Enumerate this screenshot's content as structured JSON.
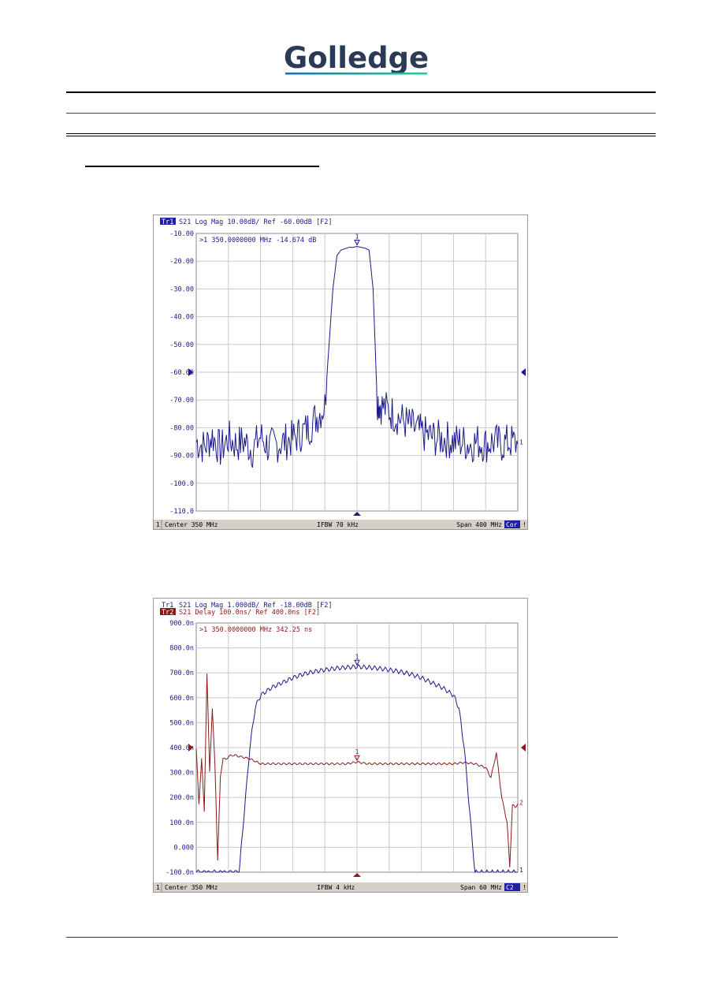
{
  "brand": {
    "name": "Golledge",
    "text_color": "#2a3a57",
    "accent_start": "#1a6fb0",
    "accent_end": "#2fc59a"
  },
  "colors": {
    "trace_blue": "#1a1a8c",
    "trace_red": "#8b1a1a",
    "grid": "#c8c8c8",
    "status_bar": "#d4d0c8",
    "badge_bg": "#2020a0"
  },
  "chart_data": [
    {
      "type": "line",
      "title": "",
      "header": [
        {
          "tag": "Tr1",
          "text": "S21 Log Mag 10.00dB/ Ref -60.00dB [F2]",
          "color": "#1a1a8c"
        }
      ],
      "marker_readout": ">1   350.0000000 MHz -14.674 dB",
      "yticks": [
        "-10.00",
        "-20.00",
        "-30.00",
        "-40.00",
        "-50.00",
        "-60.00",
        "-70.00",
        "-80.00",
        "-90.00",
        "-100.0",
        "-110.0"
      ],
      "ylim": [
        -110,
        -10
      ],
      "reference_level": -60,
      "x_divisions": 10,
      "xlim": [
        150,
        550
      ],
      "grid": true,
      "series": [
        {
          "color": "#1a1a8c",
          "x": [
            150,
            160,
            170,
            180,
            190,
            200,
            210,
            220,
            230,
            240,
            250,
            260,
            270,
            280,
            290,
            300,
            310,
            320,
            325,
            330,
            335,
            340,
            345,
            350,
            355,
            360,
            365,
            370,
            375,
            380,
            390,
            400,
            410,
            420,
            430,
            440,
            450,
            460,
            470,
            480,
            490,
            500,
            510,
            520,
            530,
            540,
            550
          ],
          "y": [
            -85,
            -87,
            -83,
            -88,
            -84,
            -86,
            -85,
            -88,
            -83,
            -87,
            -86,
            -85,
            -84,
            -82,
            -80,
            -76,
            -72,
            -30,
            -18,
            -16,
            -15.5,
            -15,
            -15,
            -14.7,
            -15,
            -15.3,
            -16,
            -30,
            -70,
            -72,
            -74,
            -76,
            -78,
            -80,
            -82,
            -83,
            -84,
            -84,
            -85,
            -85,
            -86,
            -85,
            -86,
            -85,
            -86,
            -85,
            -86
          ]
        }
      ],
      "markers": [
        {
          "x": 350,
          "y": -14.674,
          "label": "1"
        }
      ],
      "status": {
        "channel": "1",
        "center": "Center 350 MHz",
        "ifbw": "IFBW 70 kHz",
        "span": "Span 400 MHz",
        "badge": "Cor"
      }
    },
    {
      "type": "line",
      "title": "",
      "header": [
        {
          "tag": "Tr1",
          "text": "S21 Log Mag 1.000dB/ Ref -18.00dB [F2]",
          "color": "#1a1a8c"
        },
        {
          "tag": "Tr2",
          "text": "S21 Delay 100.0ns/ Ref 400.0ns [F2]",
          "color": "#8b1a1a"
        }
      ],
      "marker_readout": ">1   350.0000000 MHz   342.25 ns",
      "yticks": [
        "900.0n",
        "800.0n",
        "700.0n",
        "600.0n",
        "500.0n",
        "400.0n",
        "300.0n",
        "200.0n",
        "100.0n",
        "0.000",
        "-100.0n"
      ],
      "ylim": [
        -100,
        900
      ],
      "reference_level": 400,
      "x_divisions": 10,
      "xlim": [
        320,
        380
      ],
      "grid": true,
      "series": [
        {
          "color": "#1a1a8c",
          "x": [
            320,
            323,
            326,
            328,
            329,
            330,
            331,
            332,
            334,
            336,
            338,
            340,
            342,
            344,
            346,
            348,
            350,
            352,
            354,
            356,
            358,
            360,
            362,
            364,
            366,
            368,
            369,
            370,
            371,
            372,
            374,
            376,
            378,
            380
          ],
          "y": [
            -100,
            -100,
            -100,
            -100,
            150,
            400,
            560,
            610,
            640,
            660,
            680,
            695,
            705,
            712,
            718,
            722,
            725,
            722,
            718,
            712,
            705,
            695,
            680,
            660,
            640,
            610,
            560,
            400,
            150,
            -100,
            -100,
            -100,
            -100,
            -100
          ],
          "ripple": 18
        },
        {
          "color": "#8b1a1a",
          "x": [
            320,
            320.5,
            321,
            321.5,
            322,
            322.5,
            323,
            323.5,
            324,
            324.5,
            325,
            325.5,
            326,
            327,
            328,
            330,
            332,
            334,
            336,
            338,
            340,
            342,
            344,
            346,
            348,
            350,
            352,
            354,
            356,
            358,
            360,
            362,
            364,
            366,
            368,
            370,
            372,
            374,
            375,
            376,
            377,
            378,
            378.5,
            379,
            379.5,
            380
          ],
          "y": [
            400,
            170,
            360,
            140,
            700,
            300,
            560,
            320,
            -50,
            280,
            360,
            350,
            365,
            370,
            365,
            355,
            335,
            335,
            335,
            335,
            335,
            335,
            335,
            335,
            335,
            342,
            335,
            335,
            335,
            335,
            335,
            335,
            335,
            335,
            335,
            340,
            335,
            320,
            280,
            380,
            200,
            100,
            -80,
            170,
            160,
            175
          ],
          "ripple": 8
        }
      ],
      "markers": [
        {
          "x": 350,
          "y": 725,
          "label": "1",
          "series": 0
        },
        {
          "x": 350,
          "y": 342.25,
          "label": "1",
          "series": 1
        }
      ],
      "edge_labels": [
        "2",
        "1"
      ],
      "status": {
        "channel": "1",
        "center": "Center 350 MHz",
        "ifbw": "IFBW 4 kHz",
        "span": "Span 60 MHz",
        "badge": "C2"
      }
    }
  ]
}
